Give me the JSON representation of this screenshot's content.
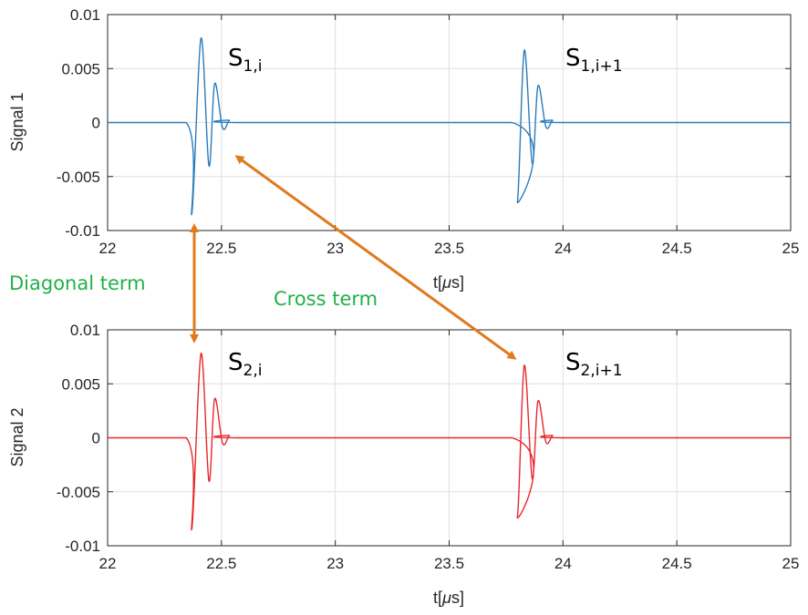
{
  "chart_data": [
    {
      "type": "line",
      "name": "top-plot",
      "ylabel": "Signal 1",
      "xlabel_prefix": "t[",
      "xlabel_mu": "μ",
      "xlabel_suffix": "s]",
      "xlim": [
        22,
        25
      ],
      "ylim": [
        -0.01,
        0.01
      ],
      "xticks": [
        22,
        22.5,
        23,
        23.5,
        24,
        24.5,
        25
      ],
      "xtick_labels": [
        "22",
        "22.5",
        "23",
        "23.5",
        "24",
        "24.5",
        "25"
      ],
      "yticks": [
        0.01,
        0.005,
        0,
        -0.005,
        -0.01
      ],
      "ytick_labels": [
        "0.01",
        "0.005",
        "0",
        "-0.005",
        "-0.01"
      ],
      "grid": true,
      "color": "#2b7bba",
      "series": [
        {
          "pulses": [
            {
              "t0": 22.37,
              "peaks": [
                [
                  22.37,
                  -0.0084
                ],
                [
                  22.41,
                  0.0078
                ],
                [
                  22.445,
                  -0.004
                ],
                [
                  22.47,
                  0.0036
                ],
                [
                  22.505,
                  -0.0005
                ],
                [
                  22.535,
                  0.0002
                ]
              ]
            },
            {
              "t0": 23.8,
              "peaks": [
                [
                  23.8,
                  -0.0073
                ],
                [
                  23.83,
                  0.0067
                ],
                [
                  23.865,
                  -0.0038
                ],
                [
                  23.89,
                  0.0034
                ],
                [
                  23.925,
                  -0.0004
                ],
                [
                  23.955,
                  0.0002
                ]
              ]
            }
          ]
        }
      ],
      "labels": [
        {
          "main": "S",
          "sub": "1,i"
        },
        {
          "main": "S",
          "sub": "1,i+1"
        }
      ]
    },
    {
      "type": "line",
      "name": "bottom-plot",
      "ylabel": "Signal 2",
      "xlabel_prefix": "t[",
      "xlabel_mu": "μ",
      "xlabel_suffix": "s]",
      "xlim": [
        22,
        25
      ],
      "ylim": [
        -0.01,
        0.01
      ],
      "xticks": [
        22,
        22.5,
        23,
        23.5,
        24,
        24.5,
        25
      ],
      "xtick_labels": [
        "22",
        "22.5",
        "23",
        "23.5",
        "24",
        "24.5",
        "25"
      ],
      "yticks": [
        0.01,
        0.005,
        0,
        -0.005,
        -0.01
      ],
      "ytick_labels": [
        "0.01",
        "0.005",
        "0",
        "-0.005",
        "-0.01"
      ],
      "grid": true,
      "color": "#e8262b",
      "series": [
        {
          "pulses": [
            {
              "t0": 22.37,
              "peaks": [
                [
                  22.37,
                  -0.0084
                ],
                [
                  22.41,
                  0.0078
                ],
                [
                  22.445,
                  -0.004
                ],
                [
                  22.47,
                  0.0036
                ],
                [
                  22.505,
                  -0.0005
                ],
                [
                  22.535,
                  0.0002
                ]
              ]
            },
            {
              "t0": 23.8,
              "peaks": [
                [
                  23.8,
                  -0.0073
                ],
                [
                  23.83,
                  0.0067
                ],
                [
                  23.865,
                  -0.0038
                ],
                [
                  23.89,
                  0.0034
                ],
                [
                  23.925,
                  -0.0004
                ],
                [
                  23.955,
                  0.0002
                ]
              ]
            }
          ]
        }
      ],
      "labels": [
        {
          "main": "S",
          "sub": "2,i"
        },
        {
          "main": "S",
          "sub": "2,i+1"
        }
      ]
    }
  ],
  "annotations": {
    "diagonal_label": "Diagonal term",
    "cross_label": "Cross term",
    "text_color": "#22b04a",
    "arrow_color": "#e07a1c"
  }
}
